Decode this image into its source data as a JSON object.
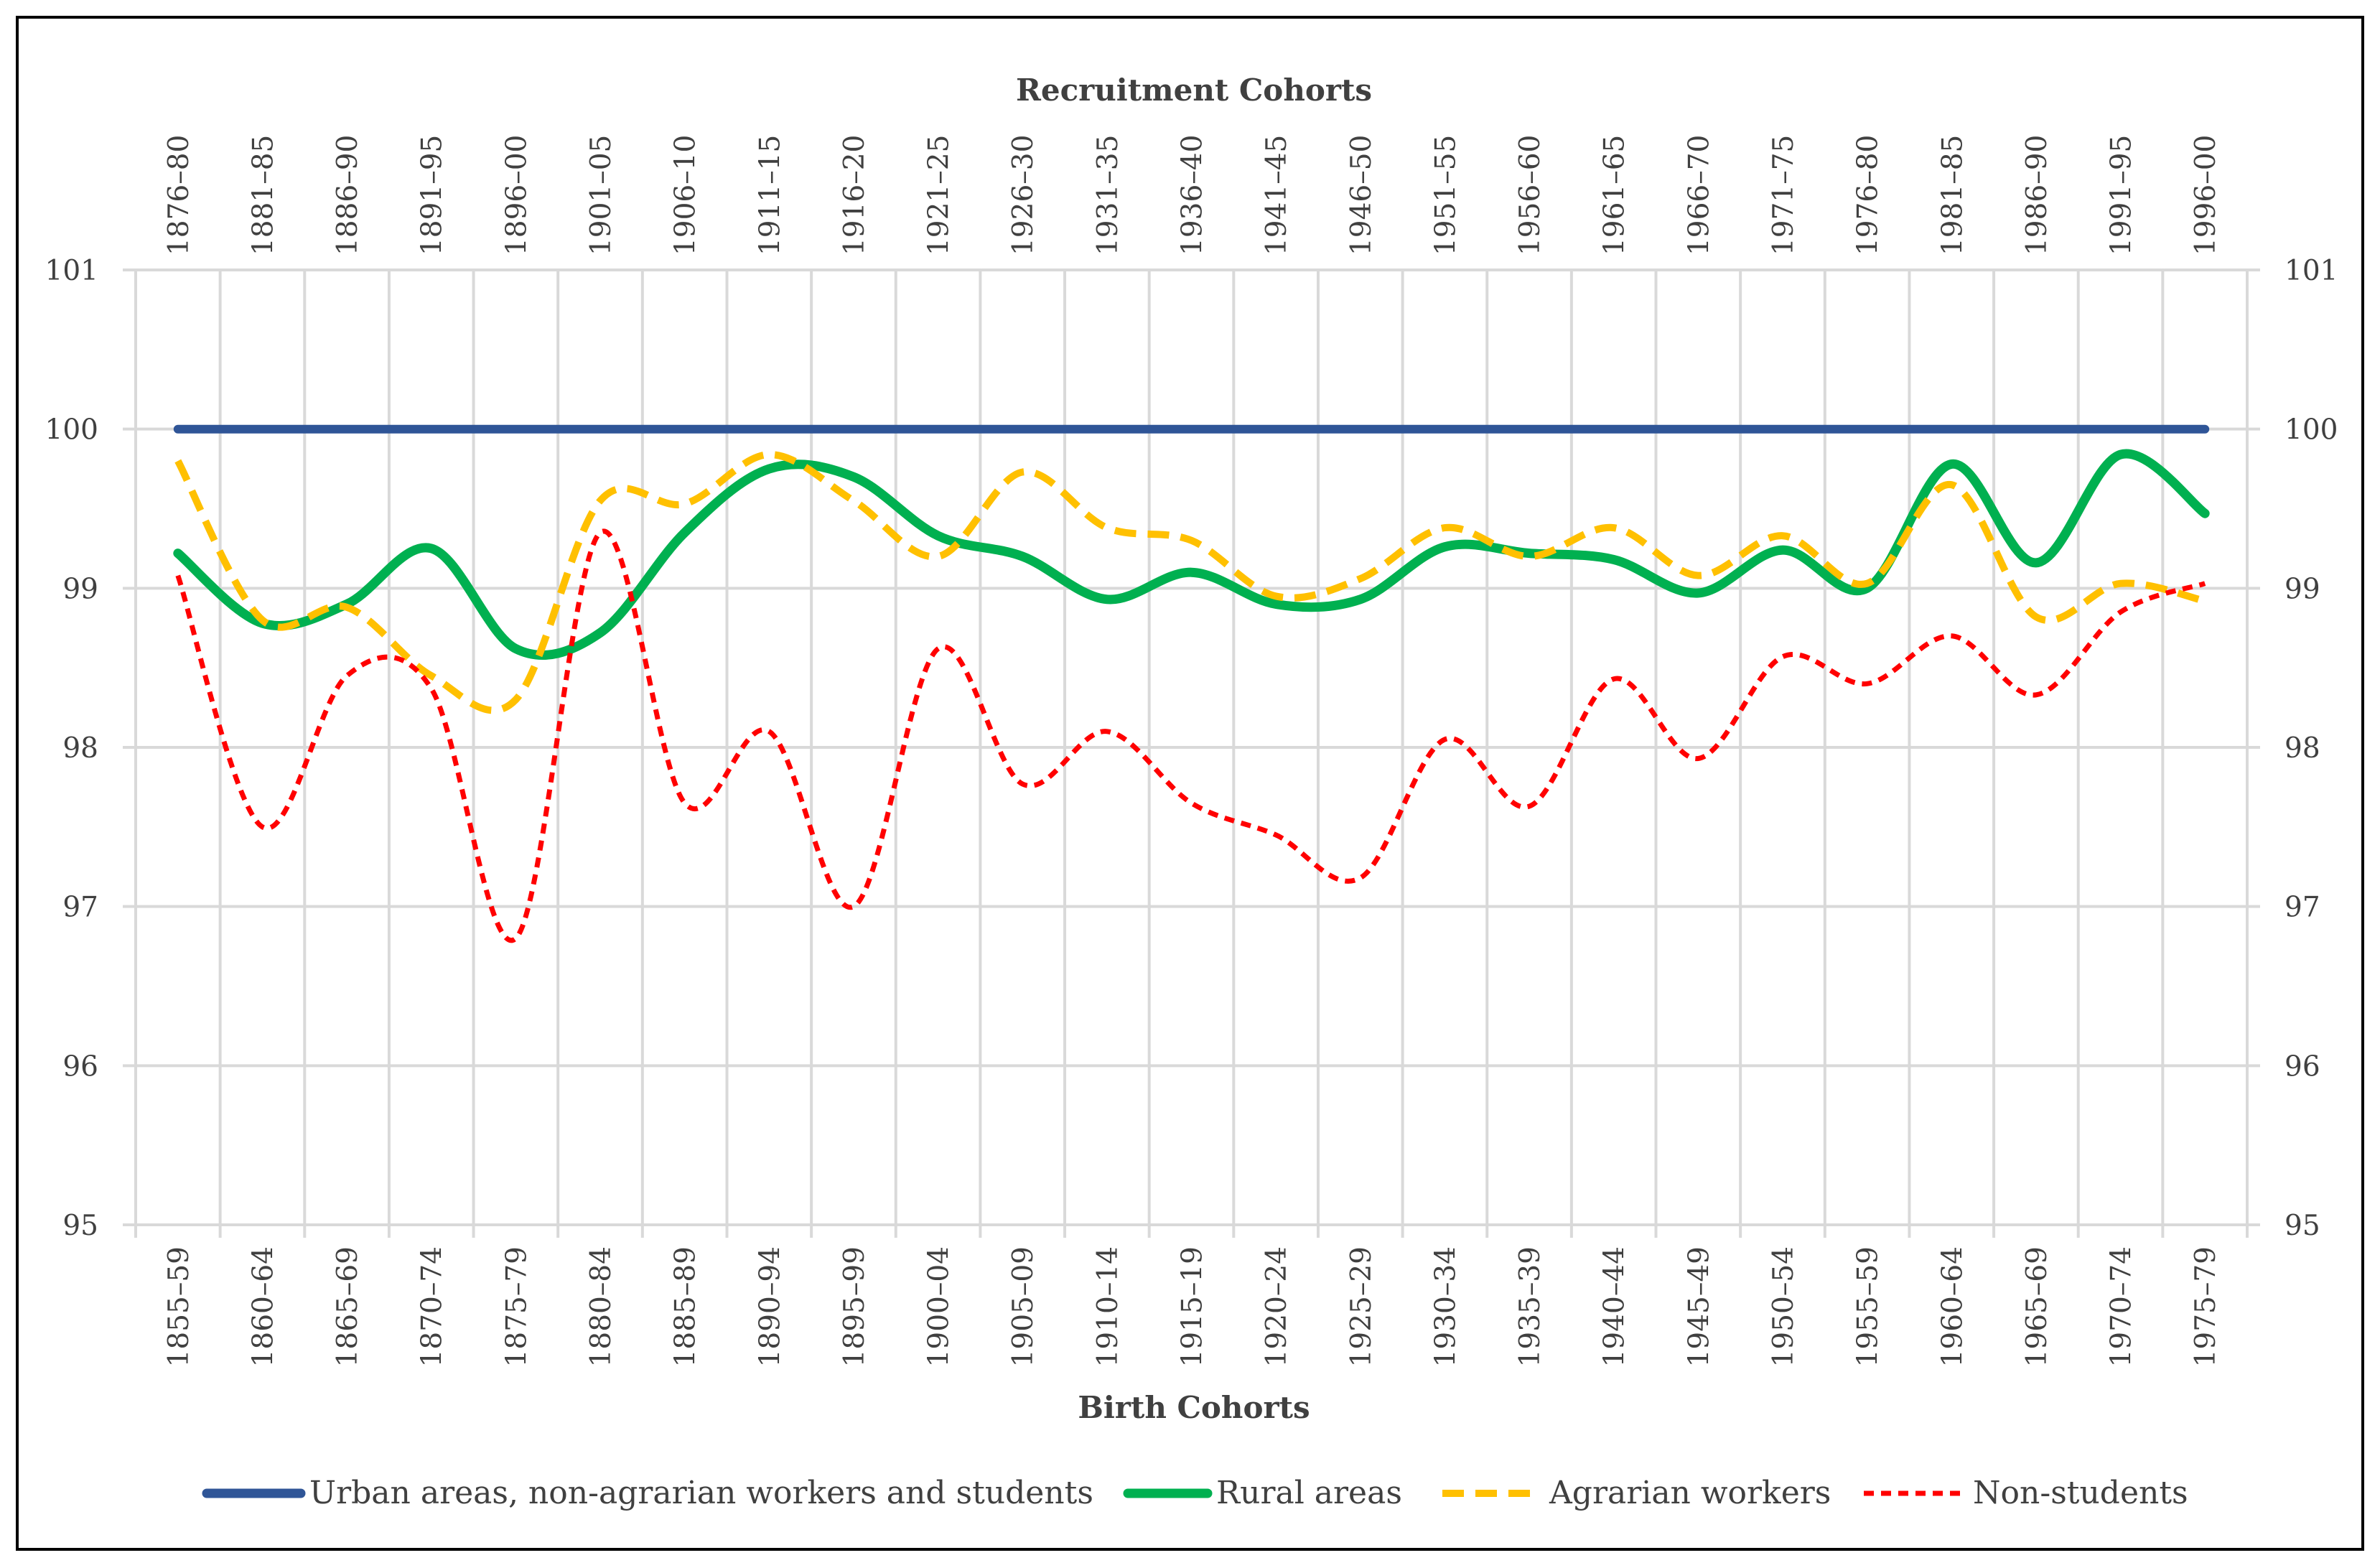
{
  "chart_data": {
    "type": "line",
    "title": "",
    "top_axis_title": "Recruitment Cohorts",
    "xlabel": "Birth Cohorts",
    "ylabel": "",
    "ylim": [
      95,
      101
    ],
    "yticks": [
      95,
      96,
      97,
      98,
      99,
      100,
      101
    ],
    "grid": true,
    "legend_position": "bottom",
    "categories": [
      "1855–59",
      "1860–64",
      "1865–69",
      "1870–74",
      "1875–79",
      "1880–84",
      "1885–89",
      "1890–94",
      "1895–99",
      "1900–04",
      "1905–09",
      "1910–14",
      "1915–19",
      "1920–24",
      "1925–29",
      "1930–34",
      "1935–39",
      "1940–44",
      "1945–49",
      "1950–54",
      "1955–59",
      "1960–64",
      "1965–69",
      "1970–74",
      "1975–79"
    ],
    "top_categories": [
      "1876–80",
      "1881–85",
      "1886–90",
      "1891–95",
      "1896–00",
      "1901–05",
      "1906–10",
      "1911–15",
      "1916–20",
      "1921–25",
      "1926–30",
      "1931–35",
      "1936–40",
      "1941–45",
      "1946–50",
      "1951–55",
      "1956–60",
      "1961–65",
      "1966–70",
      "1971–75",
      "1976–80",
      "1981–85",
      "1986–90",
      "1991–95",
      "1996–00"
    ],
    "series": [
      {
        "name": "Urban areas, non-agrarian workers and students",
        "color": "#2f5597",
        "style": "solid",
        "values": [
          100,
          100,
          100,
          100,
          100,
          100,
          100,
          100,
          100,
          100,
          100,
          100,
          100,
          100,
          100,
          100,
          100,
          100,
          100,
          100,
          100,
          100,
          100,
          100,
          100
        ]
      },
      {
        "name": "Rural areas",
        "color": "#00b050",
        "style": "solid",
        "values": [
          99.22,
          98.78,
          98.9,
          99.25,
          98.62,
          98.72,
          99.35,
          99.75,
          99.7,
          99.33,
          99.2,
          98.93,
          99.1,
          98.9,
          98.93,
          99.26,
          99.22,
          99.18,
          98.97,
          99.24,
          99.0,
          99.78,
          99.16,
          99.84,
          99.47
        ]
      },
      {
        "name": "Agrarian workers",
        "color": "#ffc000",
        "style": "dash",
        "values": [
          99.8,
          98.8,
          98.88,
          98.45,
          98.3,
          99.55,
          99.53,
          99.84,
          99.55,
          99.2,
          99.73,
          99.38,
          99.3,
          98.95,
          99.06,
          99.38,
          99.2,
          99.38,
          99.08,
          99.33,
          99.03,
          99.65,
          98.82,
          99.03,
          98.92
        ]
      },
      {
        "name": "Non-students",
        "color": "#ff0000",
        "style": "dot",
        "values": [
          99.08,
          97.5,
          98.45,
          98.37,
          96.8,
          99.35,
          97.65,
          98.1,
          97.0,
          98.62,
          97.77,
          98.1,
          97.65,
          97.45,
          97.18,
          98.05,
          97.63,
          98.43,
          97.93,
          98.57,
          98.4,
          98.7,
          98.33,
          98.85,
          99.03
        ]
      }
    ]
  }
}
